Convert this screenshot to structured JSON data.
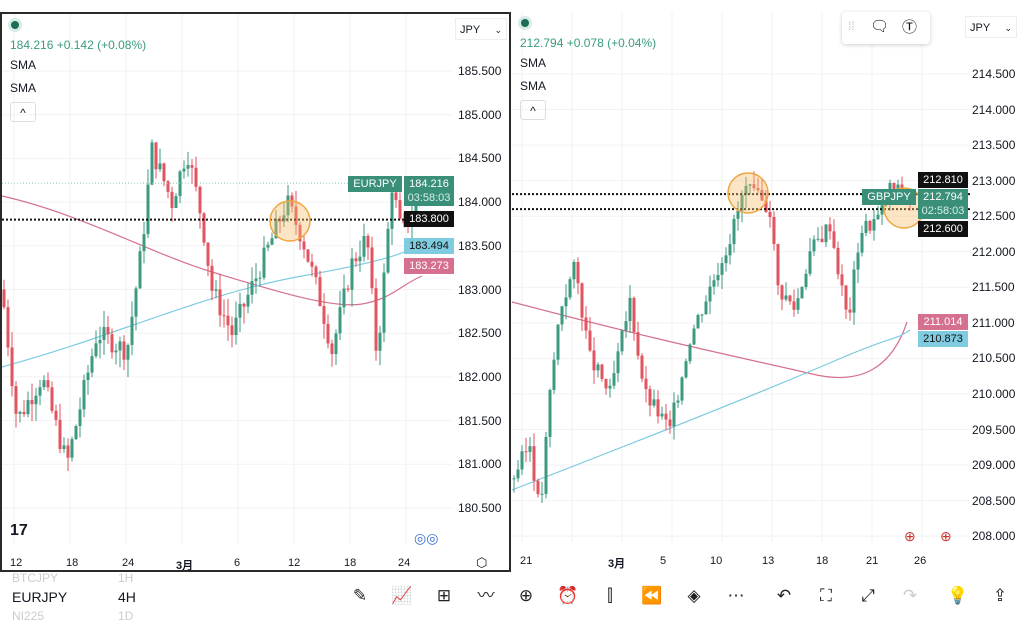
{
  "left": {
    "symbol": "EURJPY",
    "price_line": "184.216 +0.142 (+0.08%)",
    "indicators": [
      "SMA",
      "SMA"
    ],
    "currency": "JPY",
    "axis": [
      "185.500",
      "185.000",
      "184.500",
      "184.000",
      "183.500",
      "183.000",
      "182.500",
      "182.000",
      "181.500",
      "181.000",
      "180.500"
    ],
    "axis_values": [
      185.5,
      185,
      184.5,
      184,
      183.5,
      183,
      182.5,
      182,
      181.5,
      181,
      180.5
    ],
    "tags": {
      "symbol": "EURJPY",
      "last": "184.216",
      "countdown": "03:58:03",
      "line": "183.800",
      "sma_blue": "183.494",
      "sma_pink": "183.273"
    },
    "xlabels": [
      "12",
      "18",
      "24",
      "3月",
      "6",
      "12",
      "18",
      "24"
    ],
    "path": [
      [
        0,
        183.0
      ],
      [
        15,
        181.5
      ],
      [
        40,
        182.0
      ],
      [
        65,
        181.0
      ],
      [
        95,
        182.5
      ],
      [
        125,
        182.3
      ],
      [
        140,
        183.5
      ],
      [
        150,
        184.6
      ],
      [
        170,
        184.0
      ],
      [
        185,
        184.6
      ],
      [
        200,
        183.8
      ],
      [
        210,
        183.0
      ],
      [
        230,
        182.5
      ],
      [
        260,
        183.3
      ],
      [
        285,
        184.0
      ],
      [
        300,
        183.6
      ],
      [
        320,
        182.8
      ],
      [
        330,
        182.3
      ],
      [
        350,
        183.3
      ],
      [
        365,
        183.6
      ],
      [
        375,
        182.2
      ],
      [
        390,
        184.2
      ],
      [
        400,
        183.6
      ],
      [
        420,
        184.2
      ]
    ]
  },
  "right": {
    "symbol": "GBPJPY",
    "price_line": "212.794 +0.078 (+0.04%)",
    "indicators": [
      "SMA",
      "SMA"
    ],
    "currency": "JPY",
    "axis": [
      "214.500",
      "214.000",
      "213.500",
      "213.000",
      "212.500",
      "212.000",
      "211.500",
      "211.000",
      "210.500",
      "210.000",
      "209.500",
      "209.000",
      "208.500",
      "208.000"
    ],
    "axis_values": [
      214.5,
      214,
      213.5,
      213,
      212.5,
      212,
      211.5,
      211,
      210.5,
      210,
      209.5,
      209,
      208.5,
      208
    ],
    "tags": {
      "upper": "212.810",
      "symbol": "GBPJPY",
      "last": "212.794",
      "countdown": "02:58:03",
      "lower": "212.600",
      "sma_pink": "211.014",
      "sma_blue": "210.873"
    },
    "xlabels": [
      "21",
      "3月",
      "5",
      "10",
      "13",
      "18",
      "21",
      "26"
    ],
    "path": [
      [
        0,
        208.8
      ],
      [
        18,
        209.3
      ],
      [
        28,
        208.3
      ],
      [
        38,
        210.0
      ],
      [
        48,
        211.2
      ],
      [
        63,
        211.8
      ],
      [
        78,
        210.5
      ],
      [
        98,
        210.0
      ],
      [
        118,
        211.3
      ],
      [
        133,
        210.0
      ],
      [
        158,
        209.5
      ],
      [
        178,
        210.8
      ],
      [
        198,
        211.5
      ],
      [
        218,
        212.2
      ],
      [
        233,
        212.9
      ],
      [
        258,
        212.6
      ],
      [
        266,
        211.5
      ],
      [
        283,
        211.2
      ],
      [
        298,
        212.0
      ],
      [
        318,
        212.4
      ],
      [
        336,
        211.0
      ],
      [
        348,
        212.3
      ],
      [
        368,
        212.5
      ],
      [
        378,
        212.9
      ],
      [
        398,
        212.79
      ]
    ]
  },
  "colors": {
    "up": "#3d9a80",
    "down": "#e0555f",
    "blue": "#7fcbe0",
    "pink": "#d5708f",
    "tag_green": "#3a8f78"
  },
  "bottom": {
    "watch": [
      {
        "sym": "BTCJPY",
        "tf": "1H"
      },
      {
        "sym": "EURJPY",
        "tf": "4H"
      },
      {
        "sym": "NI225",
        "tf": "1D"
      }
    ]
  }
}
